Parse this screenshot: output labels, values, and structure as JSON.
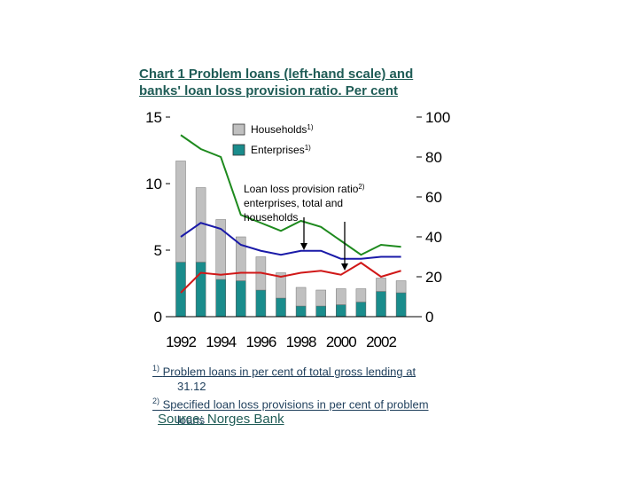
{
  "chart_data": {
    "type": "bar",
    "title": "Chart 1 Problem loans (left-hand scale) and banks' loan loss provision ratio. Per cent",
    "x": [
      1992,
      1993,
      1994,
      1995,
      1996,
      1997,
      1998,
      1999,
      2000,
      2001,
      2002,
      2003
    ],
    "x_tick_labels": [
      "1992",
      "1994",
      "1996",
      "1998",
      "2000",
      "2002"
    ],
    "left_axis": {
      "ylim": [
        0,
        15
      ],
      "ticks": [
        0,
        5,
        10,
        15
      ],
      "tick_labels": [
        "0",
        "5",
        "10",
        "15"
      ]
    },
    "right_axis": {
      "ylim": [
        0,
        100
      ],
      "ticks": [
        0,
        20,
        40,
        60,
        80,
        100
      ],
      "tick_labels": [
        "0",
        "20",
        "40",
        "60",
        "80",
        "100"
      ]
    },
    "series": [
      {
        "name": "Households",
        "footnote": "1)",
        "type": "bar",
        "axis": "left",
        "stacked": true,
        "color": "#c0c0c0",
        "values": [
          7.6,
          5.6,
          4.5,
          3.3,
          2.5,
          1.9,
          1.4,
          1.2,
          1.2,
          1.0,
          1.0,
          0.9
        ]
      },
      {
        "name": "Enterprises",
        "footnote": "1)",
        "type": "bar",
        "axis": "left",
        "stacked": true,
        "color": "#1a8c8c",
        "values": [
          4.1,
          4.1,
          2.8,
          2.7,
          2.0,
          1.4,
          0.8,
          0.8,
          0.9,
          1.1,
          1.9,
          1.8
        ]
      },
      {
        "name": "Green line",
        "type": "line",
        "axis": "right",
        "color": "#1e8a1e",
        "values": [
          91,
          84,
          80,
          51,
          47,
          43,
          48,
          45,
          38,
          31,
          36,
          35
        ]
      },
      {
        "name": "Blue line",
        "type": "line",
        "axis": "right",
        "color": "#1a1aa8",
        "values": [
          40,
          47,
          44,
          36,
          33,
          31,
          33,
          33,
          29,
          29,
          30,
          30
        ]
      },
      {
        "name": "Red line",
        "type": "line",
        "axis": "right",
        "color": "#d01818",
        "values": [
          12,
          22,
          21,
          22,
          22,
          20,
          22,
          23,
          21,
          27,
          20,
          23
        ]
      }
    ],
    "legend": {
      "households": "Households",
      "enterprises": "Enterprises",
      "footnote_mark": "1)"
    },
    "annotation": {
      "lines": [
        "Loan loss provision ratio",
        "enterprises, total and",
        "households"
      ],
      "footnote_mark": "2)"
    },
    "grid": false,
    "legend_placement": "top-left"
  },
  "notes": {
    "note1_mark": "1)",
    "note1_line1": "Problem loans in per cent of total gross lending at",
    "note1_line2": "31.12",
    "note2_mark": "2)",
    "note2_line1": "Specified loan loss provisions in per cent of problem",
    "note2_line2": "loans"
  },
  "source": "Source: Norges Bank"
}
